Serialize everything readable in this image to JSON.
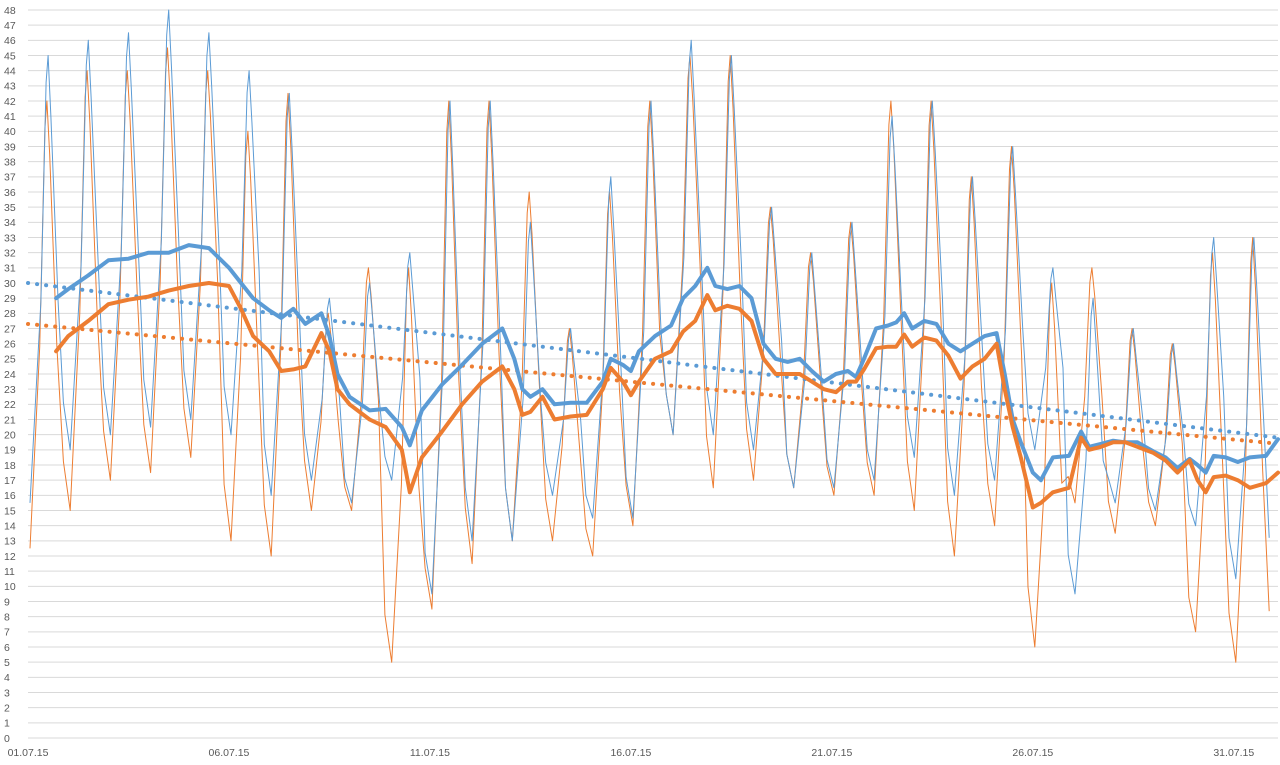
{
  "chart_data": {
    "type": "line",
    "title": "",
    "xlabel": "",
    "ylabel": "",
    "ylim": [
      0,
      48
    ],
    "yticks": [
      0,
      1,
      2,
      3,
      4,
      5,
      6,
      7,
      8,
      9,
      10,
      11,
      12,
      13,
      14,
      15,
      16,
      17,
      18,
      19,
      20,
      21,
      22,
      23,
      24,
      25,
      26,
      27,
      28,
      29,
      30,
      31,
      32,
      33,
      34,
      35,
      36,
      37,
      38,
      39,
      40,
      41,
      42,
      43,
      44,
      45,
      46,
      47,
      48
    ],
    "xlim": [
      1,
      32.1
    ],
    "xticks": [
      {
        "day": 1,
        "label": "01.07.15"
      },
      {
        "day": 6,
        "label": "06.07.15"
      },
      {
        "day": 11,
        "label": "11.07.15"
      },
      {
        "day": 16,
        "label": "16.07.15"
      },
      {
        "day": 21,
        "label": "21.07.15"
      },
      {
        "day": 26,
        "label": "26.07.15"
      },
      {
        "day": 31,
        "label": "31.07.15"
      }
    ],
    "grid": true,
    "legend": "none",
    "colors": {
      "blue": "#5b9bd5",
      "orange": "#ed7d31",
      "grid": "#d9d9d9",
      "tick_text": "#595959"
    },
    "daily_extremes": {
      "blue_max": [
        45,
        46,
        46.5,
        48,
        46.5,
        44,
        42.5,
        29,
        30,
        32,
        42,
        42,
        34,
        27,
        37,
        42,
        46,
        45,
        35,
        32,
        34,
        41,
        42,
        37,
        39,
        31,
        29,
        27,
        26,
        33,
        33
      ],
      "blue_min": [
        15.5,
        19,
        20,
        20.5,
        21,
        20,
        16,
        17,
        15.5,
        17,
        9.5,
        13,
        13,
        16,
        14.5,
        14.5,
        20,
        20,
        19,
        16.5,
        16.5,
        17,
        18.5,
        16,
        17,
        19,
        9.5,
        15.5,
        15,
        14,
        10.5
      ],
      "orange_max": [
        42,
        44,
        44,
        45.5,
        44,
        40,
        42.5,
        28,
        31,
        31,
        42,
        42,
        36,
        27,
        36,
        42,
        45,
        45,
        35,
        32,
        34,
        42,
        42,
        37,
        39,
        30,
        31,
        27,
        26,
        32,
        33
      ],
      "orange_min": [
        12.5,
        15,
        17,
        17.5,
        18.5,
        13,
        12,
        15,
        15,
        5,
        8.5,
        11.5,
        13,
        13,
        12,
        14,
        20,
        16.5,
        17,
        16.5,
        16,
        16,
        15,
        12,
        14,
        6,
        15.5,
        13.5,
        14,
        7,
        5
      ]
    },
    "series": [
      {
        "points": [
          [
            1.7,
            29
          ],
          [
            2,
            29.6
          ],
          [
            2.5,
            30.5
          ],
          [
            3,
            31.5
          ],
          [
            3.5,
            31.6
          ],
          [
            4,
            32
          ],
          [
            4.5,
            32
          ],
          [
            5,
            32.5
          ],
          [
            5.5,
            32.3
          ],
          [
            6,
            31
          ],
          [
            6.3,
            30
          ],
          [
            6.6,
            29
          ],
          [
            7,
            28.2
          ],
          [
            7.3,
            27.7
          ],
          [
            7.6,
            28.3
          ],
          [
            7.9,
            27.3
          ],
          [
            8.3,
            28
          ],
          [
            8.5,
            26.5
          ],
          [
            8.7,
            24
          ],
          [
            9,
            22.5
          ],
          [
            9.5,
            21.6
          ],
          [
            9.9,
            21.7
          ],
          [
            10.3,
            20.5
          ],
          [
            10.5,
            19.3
          ],
          [
            10.8,
            21.6
          ],
          [
            11.3,
            23.3
          ],
          [
            11.8,
            24.6
          ],
          [
            12.3,
            26
          ],
          [
            12.8,
            27
          ],
          [
            13.1,
            25
          ],
          [
            13.3,
            23
          ],
          [
            13.5,
            22.5
          ],
          [
            13.8,
            23
          ],
          [
            14.1,
            22
          ],
          [
            14.5,
            22.1
          ],
          [
            14.9,
            22.1
          ],
          [
            15.3,
            23.5
          ],
          [
            15.5,
            25
          ],
          [
            15.8,
            24.6
          ],
          [
            16,
            24.2
          ],
          [
            16.2,
            25.5
          ],
          [
            16.6,
            26.5
          ],
          [
            17,
            27.2
          ],
          [
            17.3,
            29
          ],
          [
            17.6,
            29.8
          ],
          [
            17.9,
            31
          ],
          [
            18.1,
            29.8
          ],
          [
            18.4,
            29.6
          ],
          [
            18.7,
            29.8
          ],
          [
            19,
            29
          ],
          [
            19.3,
            26
          ],
          [
            19.6,
            25
          ],
          [
            19.9,
            24.8
          ],
          [
            20.2,
            25
          ],
          [
            20.5,
            24.2
          ],
          [
            20.8,
            23.5
          ],
          [
            21.1,
            24
          ],
          [
            21.4,
            24.2
          ],
          [
            21.6,
            23.8
          ],
          [
            21.8,
            25
          ],
          [
            22.1,
            27
          ],
          [
            22.4,
            27.2
          ],
          [
            22.6,
            27.4
          ],
          [
            22.8,
            28
          ],
          [
            23,
            27
          ],
          [
            23.3,
            27.5
          ],
          [
            23.6,
            27.3
          ],
          [
            23.9,
            26
          ],
          [
            24.2,
            25.5
          ],
          [
            24.5,
            26
          ],
          [
            24.8,
            26.5
          ],
          [
            25.1,
            26.7
          ],
          [
            25.3,
            24
          ],
          [
            25.5,
            21
          ],
          [
            25.7,
            19.5
          ],
          [
            26,
            17.5
          ],
          [
            26.2,
            17
          ],
          [
            26.5,
            18.5
          ],
          [
            26.9,
            18.6
          ],
          [
            27.2,
            20.2
          ],
          [
            27.4,
            19.2
          ],
          [
            27.7,
            19.4
          ],
          [
            28,
            19.6
          ],
          [
            28.3,
            19.5
          ],
          [
            28.6,
            19.5
          ],
          [
            29,
            18.9
          ],
          [
            29.3,
            18.5
          ],
          [
            29.6,
            17.8
          ],
          [
            29.9,
            18.4
          ],
          [
            30.1,
            18
          ],
          [
            30.3,
            17.5
          ],
          [
            30.5,
            18.6
          ],
          [
            30.8,
            18.5
          ],
          [
            31.1,
            18.2
          ],
          [
            31.4,
            18.5
          ],
          [
            31.8,
            18.6
          ],
          [
            32.1,
            19.7
          ]
        ]
      },
      {
        "points": [
          [
            1.7,
            25.5
          ],
          [
            2,
            26.5
          ],
          [
            2.5,
            27.5
          ],
          [
            3,
            28.6
          ],
          [
            3.5,
            28.9
          ],
          [
            4,
            29.1
          ],
          [
            4.5,
            29.5
          ],
          [
            5,
            29.8
          ],
          [
            5.5,
            30
          ],
          [
            6,
            29.8
          ],
          [
            6.3,
            28.3
          ],
          [
            6.6,
            26.5
          ],
          [
            7,
            25.5
          ],
          [
            7.3,
            24.2
          ],
          [
            7.6,
            24.3
          ],
          [
            7.9,
            24.5
          ],
          [
            8.3,
            26.7
          ],
          [
            8.5,
            25.5
          ],
          [
            8.7,
            23
          ],
          [
            9,
            22
          ],
          [
            9.5,
            21
          ],
          [
            9.9,
            20.5
          ],
          [
            10.3,
            19
          ],
          [
            10.5,
            16.2
          ],
          [
            10.8,
            18.5
          ],
          [
            11.3,
            20.2
          ],
          [
            11.8,
            22
          ],
          [
            12.3,
            23.5
          ],
          [
            12.8,
            24.5
          ],
          [
            13.1,
            23
          ],
          [
            13.3,
            21.3
          ],
          [
            13.5,
            21.5
          ],
          [
            13.8,
            22.5
          ],
          [
            14.1,
            21
          ],
          [
            14.5,
            21.2
          ],
          [
            14.9,
            21.3
          ],
          [
            15.3,
            23
          ],
          [
            15.5,
            24.4
          ],
          [
            15.8,
            23.5
          ],
          [
            16,
            22.6
          ],
          [
            16.2,
            23.5
          ],
          [
            16.6,
            25
          ],
          [
            17,
            25.5
          ],
          [
            17.3,
            26.8
          ],
          [
            17.6,
            27.5
          ],
          [
            17.9,
            29.2
          ],
          [
            18.1,
            28.2
          ],
          [
            18.4,
            28.5
          ],
          [
            18.7,
            28.3
          ],
          [
            19,
            27.5
          ],
          [
            19.3,
            25
          ],
          [
            19.6,
            24
          ],
          [
            19.9,
            24
          ],
          [
            20.2,
            24
          ],
          [
            20.5,
            23.5
          ],
          [
            20.8,
            23
          ],
          [
            21.1,
            22.8
          ],
          [
            21.4,
            23.5
          ],
          [
            21.6,
            23.5
          ],
          [
            21.8,
            24.3
          ],
          [
            22.1,
            25.7
          ],
          [
            22.4,
            25.8
          ],
          [
            22.6,
            25.8
          ],
          [
            22.8,
            26.6
          ],
          [
            23,
            25.8
          ],
          [
            23.3,
            26.4
          ],
          [
            23.6,
            26.2
          ],
          [
            23.9,
            25.2
          ],
          [
            24.2,
            23.7
          ],
          [
            24.5,
            24.5
          ],
          [
            24.8,
            25
          ],
          [
            25.1,
            26
          ],
          [
            25.3,
            23
          ],
          [
            25.5,
            20.5
          ],
          [
            25.7,
            18.5
          ],
          [
            26,
            15.2
          ],
          [
            26.2,
            15.5
          ],
          [
            26.5,
            16.2
          ],
          [
            26.9,
            16.5
          ],
          [
            27.2,
            19.8
          ],
          [
            27.4,
            19
          ],
          [
            27.7,
            19.2
          ],
          [
            28,
            19.5
          ],
          [
            28.3,
            19.5
          ],
          [
            28.6,
            19.2
          ],
          [
            29,
            18.8
          ],
          [
            29.3,
            18.3
          ],
          [
            29.6,
            17.5
          ],
          [
            29.9,
            18.3
          ],
          [
            30.1,
            17
          ],
          [
            30.3,
            16.2
          ],
          [
            30.5,
            17.2
          ],
          [
            30.8,
            17.3
          ],
          [
            31.1,
            17
          ],
          [
            31.4,
            16.5
          ],
          [
            31.8,
            16.8
          ],
          [
            32.1,
            17.5
          ]
        ]
      }
    ],
    "trendlines": [
      {
        "from": [
          1,
          30
        ],
        "to": [
          32.1,
          19.8
        ]
      },
      {
        "from": [
          1,
          27.3
        ],
        "to": [
          32.1,
          19.4
        ]
      }
    ]
  }
}
